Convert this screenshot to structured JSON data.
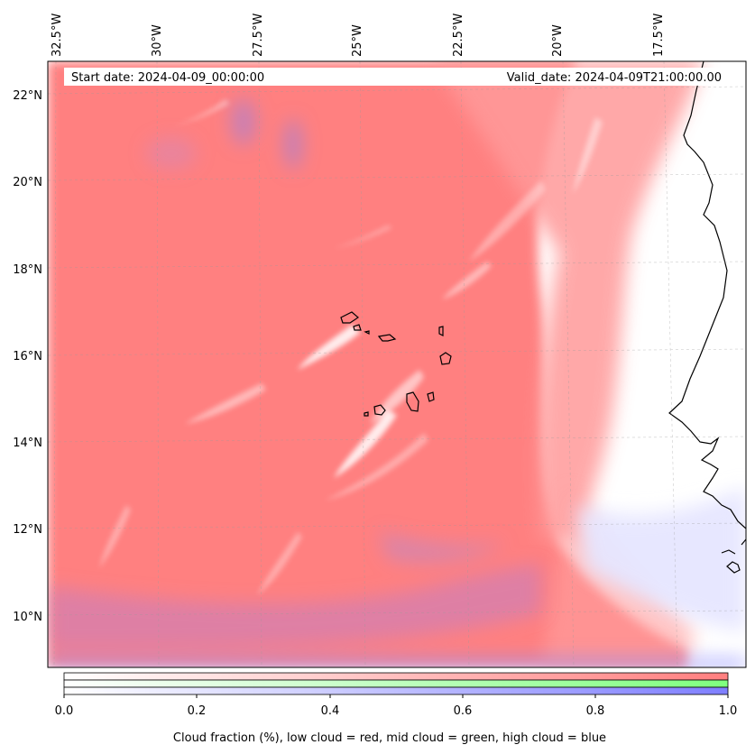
{
  "header": {
    "start_date": "Start date: 2024-04-09_00:00:00",
    "valid_date": "Valid_date: 2024-04-09T21:00:00.00"
  },
  "map": {
    "longitude_labels": [
      "32.5°W",
      "30°W",
      "27.5°W",
      "25°W",
      "22.5°W",
      "20°W",
      "17.5°W"
    ],
    "latitude_labels": [
      "22°N",
      "20°N",
      "18°N",
      "16°N",
      "14°N",
      "12°N",
      "10°N"
    ],
    "gridlines": true
  },
  "colorbar": {
    "ticks": [
      "0.0",
      "0.2",
      "0.4",
      "0.6",
      "0.8",
      "1.0"
    ],
    "label": "Cloud fraction (%), low cloud = red, mid cloud = green, high cloud = blue",
    "colors": {
      "low": "#ff7f7f",
      "mid": "#7fff7f",
      "high": "#7f7fff"
    }
  }
}
